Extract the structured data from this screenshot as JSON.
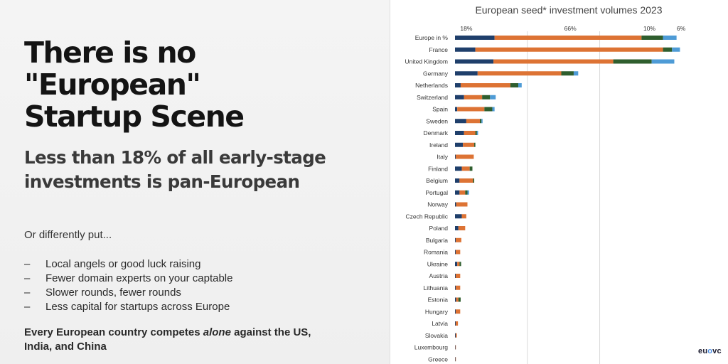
{
  "slide": {
    "title_lines": [
      "There is no",
      "\"European\"",
      "Startup Scene"
    ],
    "subtitle_lines": [
      "Less than 18% of all early-stage",
      "investments is pan-European"
    ],
    "intro": "Or differently put...",
    "bullets": [
      "Local angels or good luck raising",
      "Fewer domain experts on your captable",
      "Slower rounds, fewer rounds",
      "Less capital for startups across Europe"
    ],
    "footer": {
      "before": "Every European country competes ",
      "emphasis": "alone",
      "after": " against the US, India, and China"
    },
    "logo": {
      "pre": "eu",
      "mid": "o",
      "post": "vc"
    }
  },
  "chart_data": {
    "type": "bar",
    "orientation": "horizontal",
    "stacked": true,
    "title": "European seed* investment volumes 2023",
    "top_annotations": [
      {
        "label": "18%",
        "x": 5
      },
      {
        "label": "66%",
        "x": 51
      },
      {
        "label": "10%",
        "x": 86
      },
      {
        "label": "6%",
        "x": 100
      }
    ],
    "xlim": [
      0,
      100
    ],
    "gridlines": [
      32,
      64
    ],
    "categories": [
      "Europe in %",
      "France",
      "United Kingdom",
      "Germany",
      "Netherlands",
      "Switzerland",
      "Spain",
      "Sweden",
      "Denmark",
      "Ireland",
      "Italy",
      "Finland",
      "Belgium",
      "Portugal",
      "Norway",
      "Czech Republic",
      "Poland",
      "Bulgaria",
      "Romania",
      "Ukraine",
      "Austria",
      "Lithuania",
      "Estonia",
      "Hungary",
      "Latvia",
      "Slovakia",
      "Luxembourg",
      "Greece"
    ],
    "series": [
      {
        "color": "#1f3f6b",
        "values": [
          17.5,
          9,
          17,
          10,
          2.5,
          4,
          1,
          5,
          4,
          3.5,
          0.3,
          3,
          2,
          2,
          0.5,
          3,
          1.5,
          0.3,
          0.3,
          1,
          0.3,
          0.3,
          0.5,
          0.3,
          0.3,
          0.3,
          0.2,
          0.2
        ]
      },
      {
        "color": "#dd7334",
        "values": [
          65,
          83,
          53,
          37,
          22,
          8,
          12,
          6,
          5,
          5,
          8,
          3.5,
          6,
          2.5,
          5,
          2,
          3,
          2.5,
          2,
          1,
          2,
          2,
          1,
          2,
          1,
          0.5,
          0.1,
          0.1
        ]
      },
      {
        "color": "#2f5e2e",
        "values": [
          9.5,
          4,
          17,
          5.5,
          3.5,
          3.5,
          3.5,
          0.7,
          0.7,
          0.5,
          0,
          1.2,
          0.5,
          1,
          0,
          0,
          0,
          0,
          0,
          0.7,
          0,
          0,
          1,
          0,
          0,
          0,
          0,
          0
        ]
      },
      {
        "color": "#4e9bd6",
        "values": [
          6,
          3.5,
          10,
          2,
          1.5,
          2.5,
          1,
          0.5,
          0.5,
          0,
          0,
          0,
          0,
          0.7,
          0,
          0,
          0,
          0,
          0,
          0,
          0,
          0,
          0,
          0,
          0,
          0,
          0,
          0
        ]
      }
    ]
  }
}
